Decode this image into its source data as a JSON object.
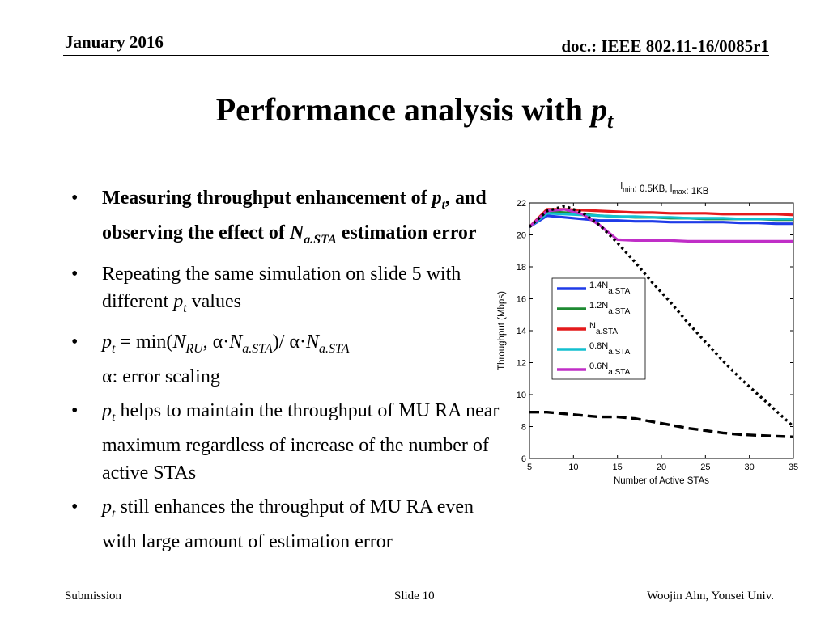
{
  "header": {
    "date": "January 2016",
    "doc": "doc.: IEEE 802.11-16/0085r1"
  },
  "title": {
    "main": "Performance analysis with ",
    "var": "p",
    "var_sub": "t"
  },
  "bullets": [
    {
      "b1a": "Measuring throughput enhancement of",
      "p": "p",
      "p_sub": "t",
      "b1b": ", and observing the effect of ",
      "n": "N",
      "n_sub": "a.STA",
      "b1c": "estimation error"
    },
    {
      "text_a": "Repeating the same simulation on slide 5 with different ",
      "p": "p",
      "p_sub": "t",
      "text_b": " values"
    },
    {
      "p": "p",
      "p_sub": "t",
      "eq1": " = min(",
      "nru": "N",
      "nru_sub": "RU",
      "eq2": ", α·",
      "n": "N",
      "n_sub": "a.STA",
      "eq3": ")/ α·",
      "n2": "N",
      "n2_sub": "a.STA",
      "alpha": "α: error scaling"
    },
    {
      "p": "p",
      "p_sub": "t",
      "text": " helps to maintain the throughput of MU RA near maximum regardless of increase of the number of active STAs"
    },
    {
      "p": "p",
      "p_sub": "t",
      "text": " still enhances the throughput of MU RA even with large amount of estimation error"
    }
  ],
  "footer": {
    "left": "Submission",
    "center": "Slide 10",
    "right": "Woojin Ahn, Yonsei Univ."
  },
  "chart_data": {
    "type": "line",
    "title": "lmin: 0.5KB, lmax: 1KB",
    "title_parts": {
      "a": "l",
      "a_sub": "min",
      "b": ": 0.5KB, l",
      "b_sub": "max",
      "c": ": 1KB"
    },
    "xlabel": "Number of Active STAs",
    "ylabel": "Throughput (Mbps)",
    "xlim": [
      5,
      35
    ],
    "ylim": [
      6,
      22
    ],
    "xticks": [
      5,
      10,
      15,
      20,
      25,
      30,
      35
    ],
    "yticks": [
      6,
      8,
      10,
      12,
      14,
      16,
      18,
      20,
      22
    ],
    "x": [
      5,
      7,
      9,
      11,
      13,
      15,
      17,
      19,
      21,
      23,
      25,
      27,
      29,
      31,
      33,
      35
    ],
    "series": [
      {
        "name": "1.4Na.STA",
        "label": "1.4N",
        "label_sub": "a.STA",
        "color": "#1f3be8",
        "style": "solid",
        "values": [
          20.5,
          21.2,
          21.1,
          21.0,
          20.9,
          20.9,
          20.85,
          20.85,
          20.8,
          20.8,
          20.8,
          20.8,
          20.75,
          20.75,
          20.7,
          20.7
        ]
      },
      {
        "name": "1.2Na.STA",
        "label": "1.2N",
        "label_sub": "a.STA",
        "color": "#1e8a32",
        "style": "solid",
        "values": [
          20.5,
          21.45,
          21.4,
          21.3,
          21.2,
          21.15,
          21.1,
          21.1,
          21.05,
          21.05,
          21.0,
          21.0,
          21.0,
          21.0,
          20.95,
          20.95
        ]
      },
      {
        "name": "Na.STA",
        "label": "N",
        "label_sub": "a.STA",
        "color": "#e41a1c",
        "style": "solid",
        "values": [
          20.5,
          21.6,
          21.6,
          21.55,
          21.5,
          21.45,
          21.4,
          21.4,
          21.35,
          21.35,
          21.35,
          21.3,
          21.3,
          21.3,
          21.3,
          21.25
        ]
      },
      {
        "name": "0.8Na.STA",
        "label": "0.8N",
        "label_sub": "a.STA",
        "color": "#13bfcf",
        "style": "solid",
        "values": [
          20.5,
          21.35,
          21.3,
          21.25,
          21.2,
          21.15,
          21.15,
          21.1,
          21.1,
          21.05,
          21.05,
          21.05,
          21.0,
          21.0,
          21.0,
          21.0
        ]
      },
      {
        "name": "0.6Na.STA",
        "label": "0.6N",
        "label_sub": "a.STA",
        "color": "#c02ec7",
        "style": "solid",
        "values": [
          20.5,
          21.5,
          21.6,
          21.3,
          20.6,
          19.7,
          19.65,
          19.65,
          19.65,
          19.6,
          19.6,
          19.6,
          19.6,
          19.6,
          19.6,
          19.6
        ]
      },
      {
        "name": "",
        "color": "#000000",
        "style": "dotted",
        "values": [
          20.5,
          21.5,
          21.8,
          21.4,
          20.6,
          19.5,
          18.3,
          17.0,
          15.8,
          14.5,
          13.3,
          12.1,
          11.0,
          10.0,
          9.0,
          8.0
        ]
      },
      {
        "name": "",
        "color": "#000000",
        "style": "dashed",
        "values": [
          8.9,
          8.9,
          8.8,
          8.7,
          8.6,
          8.6,
          8.5,
          8.3,
          8.1,
          7.9,
          7.75,
          7.6,
          7.5,
          7.45,
          7.4,
          7.35
        ]
      }
    ],
    "legend_position": "left-center",
    "grid": false
  }
}
